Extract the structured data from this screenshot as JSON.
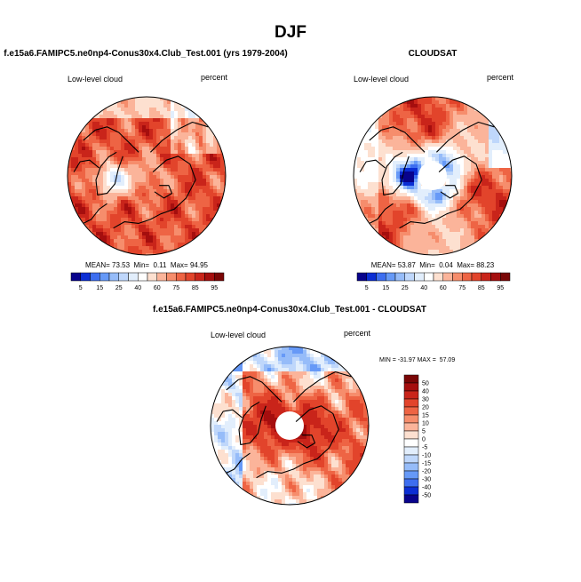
{
  "figure": {
    "season_title": "DJF"
  },
  "chart_data": [
    {
      "type": "heatmap",
      "projection": "polar-stereographic-north",
      "title": "f.e15a6.FAMIPC5.ne0np4-Conus30x4.Club_Test.001 (yrs 1979-2004)",
      "left_label": "Low-level cloud",
      "right_label": "percent",
      "stats_text": "MEAN= 73.53  Min=  0.11  Max= 94.95",
      "stats": {
        "mean": 73.53,
        "min": 0.11,
        "max": 94.95
      },
      "colorbar": {
        "orientation": "horizontal",
        "levels": [
          5,
          10,
          15,
          20,
          25,
          30,
          40,
          50,
          60,
          70,
          75,
          80,
          85,
          90,
          95
        ],
        "tick_labels": [
          "5",
          "15",
          "25",
          "40",
          "60",
          "75",
          "85",
          "95"
        ],
        "colors": [
          "#08038c",
          "#0b2ed4",
          "#3d6ef0",
          "#6699f7",
          "#96bcf9",
          "#bfd7fb",
          "#e2eefc",
          "#ffffff",
          "#fde0d0",
          "#fbb49a",
          "#f68d6c",
          "#ee6444",
          "#e2442b",
          "#c9241a",
          "#a50e0e",
          "#7a0606"
        ]
      },
      "field_character": "mostly high (70-95%) with low values over Greenland and the pole"
    },
    {
      "type": "heatmap",
      "projection": "polar-stereographic-north",
      "title": "CLOUDSAT",
      "left_label": "Low-level cloud",
      "right_label": "percent",
      "stats_text": "MEAN= 53.87  Min=  0.04  Max= 88.23",
      "stats": {
        "mean": 53.87,
        "min": 0.04,
        "max": 88.23
      },
      "colorbar": {
        "orientation": "horizontal",
        "levels": [
          5,
          10,
          15,
          20,
          25,
          30,
          40,
          50,
          60,
          70,
          75,
          80,
          85,
          90,
          95
        ],
        "tick_labels": [
          "5",
          "15",
          "25",
          "40",
          "60",
          "75",
          "85",
          "95"
        ],
        "colors": [
          "#08038c",
          "#0b2ed4",
          "#3d6ef0",
          "#6699f7",
          "#96bcf9",
          "#bfd7fb",
          "#e2eefc",
          "#ffffff",
          "#fde0d0",
          "#fbb49a",
          "#f68d6c",
          "#ee6444",
          "#e2442b",
          "#c9241a",
          "#a50e0e",
          "#7a0606"
        ]
      },
      "missing_data_region": "polar cap north of ~82N",
      "field_character": "moderate to high over oceans, low (blue) over Arctic sea ice and Greenland"
    },
    {
      "type": "heatmap",
      "projection": "polar-stereographic-north",
      "title": "f.e15a6.FAMIPC5.ne0np4-Conus30x4.Club_Test.001 - CLOUDSAT",
      "left_label": "Low-level cloud",
      "right_label": "percent",
      "stats_text": "MIN = -31.97 MAX =  57.09",
      "stats": {
        "min": -31.97,
        "max": 57.09
      },
      "colorbar": {
        "orientation": "vertical",
        "levels": [
          -50,
          -40,
          -30,
          -20,
          -15,
          -10,
          -5,
          0,
          5,
          10,
          15,
          20,
          30,
          40,
          50
        ],
        "tick_labels": [
          "50",
          "40",
          "30",
          "20",
          "15",
          "10",
          "5",
          "0",
          "-5",
          "-10",
          "-15",
          "-20",
          "-30",
          "-40",
          "-50"
        ],
        "colors": [
          "#08038c",
          "#0b2ed4",
          "#3d6ef0",
          "#6699f7",
          "#96bcf9",
          "#bfd7fb",
          "#e2eefc",
          "#ffffff",
          "#fde0d0",
          "#fbb49a",
          "#f68d6c",
          "#ee6444",
          "#e2442b",
          "#c9241a",
          "#a50e0e",
          "#7a0606"
        ]
      },
      "missing_data_region": "polar cap north of ~82N",
      "field_character": "mostly positive (model > observations), strongest over the Arctic Ocean"
    }
  ]
}
